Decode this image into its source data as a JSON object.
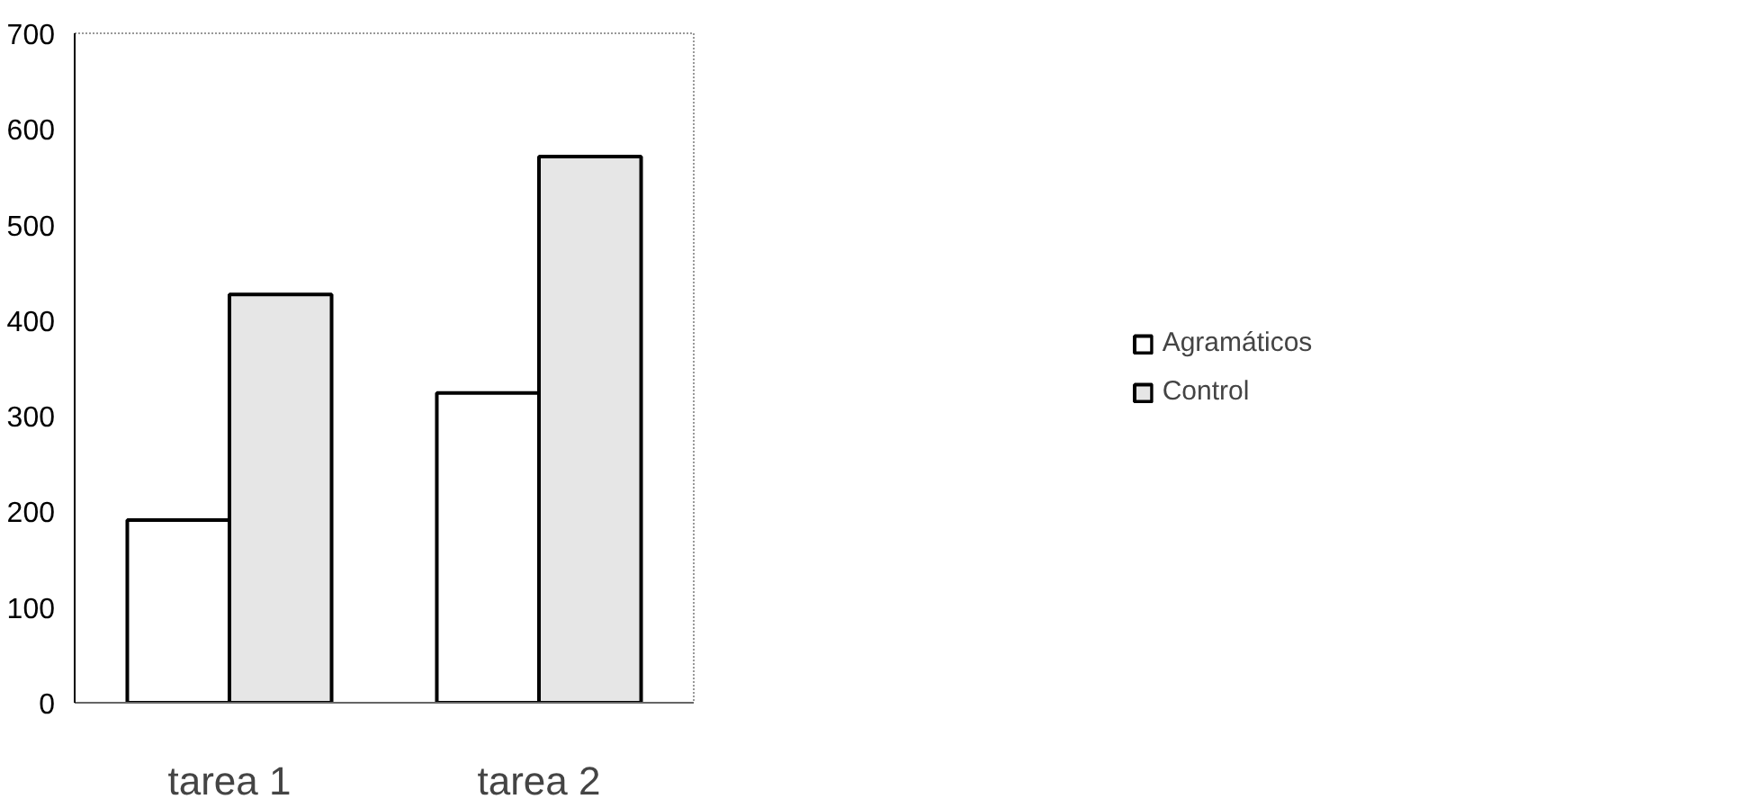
{
  "chart_data": {
    "type": "bar",
    "categories": [
      "tarea 1",
      "tarea 2"
    ],
    "series": [
      {
        "name": "Agramáticos",
        "color": "#ffffff",
        "values": [
          191,
          324
        ]
      },
      {
        "name": "Control",
        "color": "#e6e6e6",
        "values": [
          427,
          571
        ]
      }
    ],
    "ylim": [
      0,
      700
    ],
    "yticks": [
      0,
      100,
      200,
      300,
      400,
      500,
      600,
      700
    ],
    "grid": false,
    "legend": "right"
  }
}
